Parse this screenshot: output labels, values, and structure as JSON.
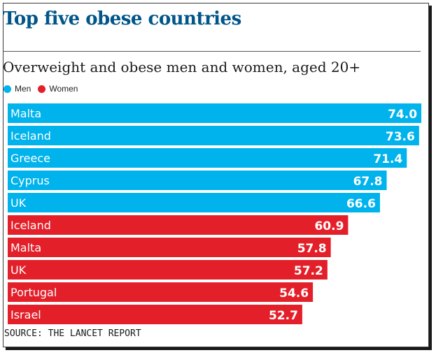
{
  "header": {
    "title": "Top five obese countries",
    "subtitle": "Overweight and obese men and women, aged 20+"
  },
  "legend": {
    "items": [
      {
        "label": "Men",
        "color": "#00b3ec"
      },
      {
        "label": "Women",
        "color": "#e3202a"
      }
    ]
  },
  "footer": {
    "source": "SOURCE: THE LANCET REPORT"
  },
  "chart_data": {
    "type": "bar",
    "orientation": "horizontal",
    "title": "Top five obese countries",
    "subtitle": "Overweight and obese men and women, aged 20+",
    "xlabel": "",
    "ylabel": "",
    "grid": false,
    "legend_placement": "top-left",
    "colors": {
      "Men": "#00b3ec",
      "Women": "#e3202a"
    },
    "bars": [
      {
        "category": "Malta",
        "value": 74.0,
        "value_label": "74.0",
        "series": "Men"
      },
      {
        "category": "Iceland",
        "value": 73.6,
        "value_label": "73.6",
        "series": "Men"
      },
      {
        "category": "Greece",
        "value": 71.4,
        "value_label": "71.4",
        "series": "Men"
      },
      {
        "category": "Cyprus",
        "value": 67.8,
        "value_label": "67.8",
        "series": "Men"
      },
      {
        "category": "UK",
        "value": 66.6,
        "value_label": "66.6",
        "series": "Men"
      },
      {
        "category": "Iceland",
        "value": 60.9,
        "value_label": "60.9",
        "series": "Women"
      },
      {
        "category": "Malta",
        "value": 57.8,
        "value_label": "57.8",
        "series": "Women"
      },
      {
        "category": "UK",
        "value": 57.2,
        "value_label": "57.2",
        "series": "Women"
      },
      {
        "category": "Portugal",
        "value": 54.6,
        "value_label": "54.6",
        "series": "Women"
      },
      {
        "category": "Israel",
        "value": 52.7,
        "value_label": "52.7",
        "series": "Women"
      }
    ]
  }
}
